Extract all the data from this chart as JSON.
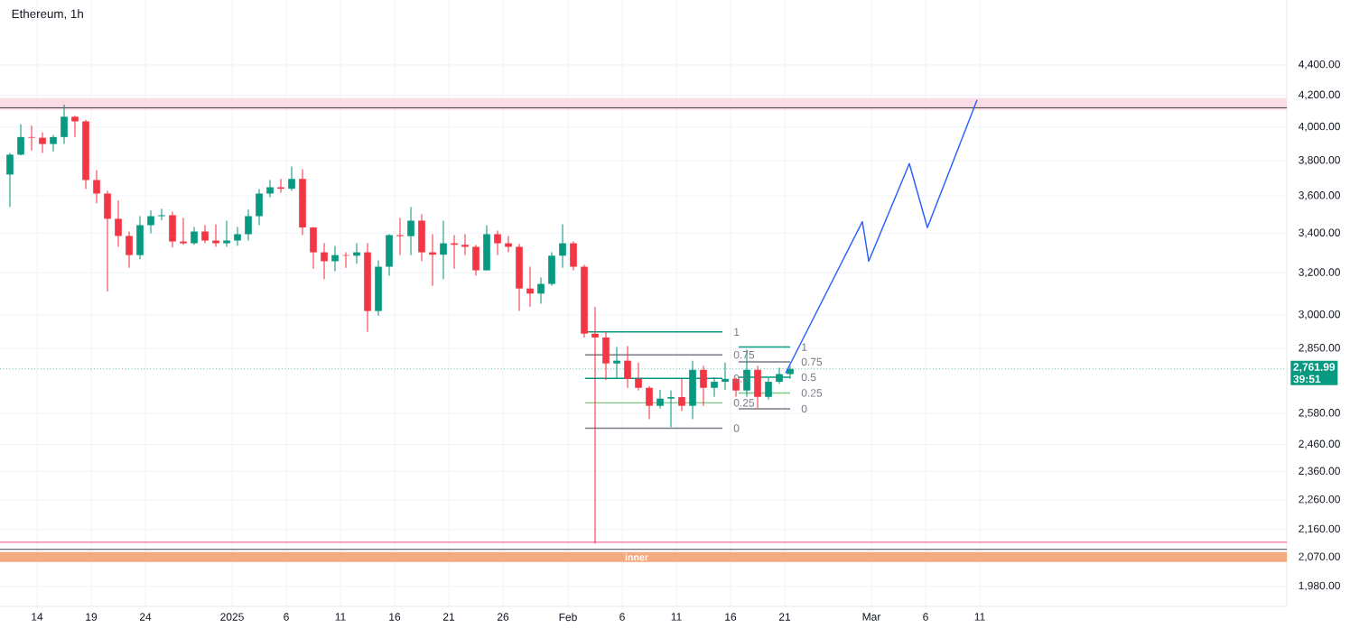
{
  "chart_data": {
    "type": "candlestick",
    "title": "Ethereum, 1h",
    "x": [
      "2024-12-11T12:00",
      "2024-12-12T12:00",
      "2024-12-13T12:00",
      "2024-12-14T12:00",
      "2024-12-15T12:00",
      "2024-12-16T12:00",
      "2024-12-17T12:00",
      "2024-12-18T12:00",
      "2024-12-19T12:00",
      "2024-12-20T12:00",
      "2024-12-21T12:00",
      "2024-12-22T12:00",
      "2024-12-23T12:00",
      "2024-12-24T12:00",
      "2024-12-25T12:00",
      "2024-12-26T12:00",
      "2024-12-27T12:00",
      "2024-12-28T12:00",
      "2024-12-29T12:00",
      "2024-12-30T12:00",
      "2024-12-31T12:00",
      "2025-01-01T12:00",
      "2025-01-02T12:00",
      "2025-01-03T12:00",
      "2025-01-04T12:00",
      "2025-01-05T12:00",
      "2025-01-06T12:00",
      "2025-01-07T12:00",
      "2025-01-08T12:00",
      "2025-01-09T12:00",
      "2025-01-10T12:00",
      "2025-01-11T12:00",
      "2025-01-12T12:00",
      "2025-01-13T12:00",
      "2025-01-14T12:00",
      "2025-01-15T12:00",
      "2025-01-16T12:00",
      "2025-01-17T12:00",
      "2025-01-18T12:00",
      "2025-01-19T12:00",
      "2025-01-20T12:00",
      "2025-01-21T12:00",
      "2025-01-22T12:00",
      "2025-01-23T12:00",
      "2025-01-24T12:00",
      "2025-01-25T12:00",
      "2025-01-26T12:00",
      "2025-01-27T12:00",
      "2025-01-28T12:00",
      "2025-01-29T12:00",
      "2025-01-30T12:00",
      "2025-01-31T12:00",
      "2025-02-01T12:00",
      "2025-02-02T12:00",
      "2025-02-03T12:00",
      "2025-02-04T12:00",
      "2025-02-05T12:00",
      "2025-02-06T12:00",
      "2025-02-07T12:00",
      "2025-02-08T12:00",
      "2025-02-09T12:00",
      "2025-02-10T12:00",
      "2025-02-11T12:00",
      "2025-02-12T12:00",
      "2025-02-13T12:00",
      "2025-02-14T12:00",
      "2025-02-15T12:00",
      "2025-02-16T12:00",
      "2025-02-17T12:00",
      "2025-02-18T12:00",
      "2025-02-19T12:00",
      "2025-02-20T12:00",
      "2025-02-21T12:00"
    ],
    "ohlc": [
      [
        3720,
        3845,
        3539,
        3835
      ],
      [
        3835,
        4017,
        3830,
        3940
      ],
      [
        3940,
        4008,
        3860,
        3936
      ],
      [
        3936,
        3968,
        3845,
        3898
      ],
      [
        3898,
        3953,
        3855,
        3940
      ],
      [
        3940,
        4140,
        3898,
        4064
      ],
      [
        4064,
        4070,
        3940,
        4035
      ],
      [
        4035,
        4045,
        3638,
        3689
      ],
      [
        3689,
        3745,
        3560,
        3613
      ],
      [
        3613,
        3628,
        3110,
        3476
      ],
      [
        3476,
        3574,
        3330,
        3386
      ],
      [
        3386,
        3409,
        3225,
        3288
      ],
      [
        3288,
        3490,
        3267,
        3442
      ],
      [
        3442,
        3520,
        3400,
        3490
      ],
      [
        3490,
        3530,
        3470,
        3495
      ],
      [
        3495,
        3514,
        3326,
        3357
      ],
      [
        3357,
        3480,
        3340,
        3348
      ],
      [
        3348,
        3433,
        3340,
        3409
      ],
      [
        3409,
        3442,
        3348,
        3362
      ],
      [
        3362,
        3447,
        3330,
        3348
      ],
      [
        3348,
        3466,
        3330,
        3362
      ],
      [
        3362,
        3433,
        3335,
        3395
      ],
      [
        3395,
        3525,
        3362,
        3490
      ],
      [
        3490,
        3638,
        3442,
        3613
      ],
      [
        3613,
        3689,
        3593,
        3648
      ],
      [
        3648,
        3695,
        3618,
        3640
      ],
      [
        3640,
        3766,
        3628,
        3695
      ],
      [
        3695,
        3750,
        3390,
        3430
      ],
      [
        3430,
        3433,
        3220,
        3302
      ],
      [
        3302,
        3348,
        3168,
        3257
      ],
      [
        3257,
        3334,
        3208,
        3288
      ],
      [
        3288,
        3302,
        3225,
        3285
      ],
      [
        3285,
        3348,
        3245,
        3302
      ],
      [
        3302,
        3348,
        2923,
        3018
      ],
      [
        3018,
        3262,
        2997,
        3230
      ],
      [
        3230,
        3395,
        3186,
        3390
      ],
      [
        3390,
        3480,
        3288,
        3385
      ],
      [
        3385,
        3539,
        3288,
        3466
      ],
      [
        3466,
        3500,
        3257,
        3302
      ],
      [
        3302,
        3395,
        3137,
        3290
      ],
      [
        3290,
        3466,
        3168,
        3348
      ],
      [
        3348,
        3390,
        3220,
        3340
      ],
      [
        3340,
        3395,
        3288,
        3330
      ],
      [
        3330,
        3340,
        3186,
        3212
      ],
      [
        3212,
        3442,
        3212,
        3395
      ],
      [
        3395,
        3414,
        3288,
        3348
      ],
      [
        3348,
        3385,
        3302,
        3330
      ],
      [
        3330,
        3345,
        3018,
        3124
      ],
      [
        3124,
        3230,
        3039,
        3100
      ],
      [
        3100,
        3177,
        3052,
        3146
      ],
      [
        3146,
        3302,
        3137,
        3285
      ],
      [
        3285,
        3447,
        3225,
        3348
      ],
      [
        3348,
        3357,
        3212,
        3230
      ],
      [
        3230,
        3240,
        2898,
        2915
      ],
      [
        2915,
        3036,
        2113,
        2898
      ],
      [
        2898,
        2923,
        2716,
        2785
      ],
      [
        2785,
        2856,
        2720,
        2797
      ],
      [
        2797,
        2860,
        2683,
        2720
      ],
      [
        2720,
        2789,
        2672,
        2683
      ],
      [
        2683,
        2690,
        2557,
        2610
      ],
      [
        2610,
        2675,
        2600,
        2639
      ],
      [
        2639,
        2672,
        2526,
        2645
      ],
      [
        2645,
        2720,
        2589,
        2610
      ],
      [
        2610,
        2797,
        2557,
        2758
      ],
      [
        2758,
        2775,
        2610,
        2683
      ],
      [
        2683,
        2727,
        2646,
        2708
      ],
      [
        2708,
        2789,
        2675,
        2720
      ],
      [
        2720,
        2725,
        2646,
        2672
      ],
      [
        2672,
        2845,
        2646,
        2758
      ],
      [
        2758,
        2775,
        2600,
        2646
      ],
      [
        2646,
        2727,
        2635,
        2708
      ],
      [
        2708,
        2767,
        2700,
        2740
      ],
      [
        2740,
        2775,
        2720,
        2761.99
      ]
    ],
    "colors": [
      "#089981",
      "#089981",
      "#f23645",
      "#f23645",
      "#089981",
      "#089981",
      "#f23645",
      "#f23645",
      "#f23645",
      "#f23645",
      "#f23645",
      "#f23645",
      "#089981",
      "#089981",
      "#089981",
      "#f23645",
      "#f23645",
      "#089981",
      "#f23645",
      "#f23645",
      "#089981",
      "#089981",
      "#089981",
      "#089981",
      "#089981",
      "#f23645",
      "#089981",
      "#f23645",
      "#f23645",
      "#f23645",
      "#089981",
      "#f23645",
      "#089981",
      "#f23645",
      "#089981",
      "#089981",
      "#f23645",
      "#089981",
      "#f23645",
      "#f23645",
      "#089981",
      "#f23645",
      "#f23645",
      "#f23645",
      "#089981",
      "#f23645",
      "#f23645",
      "#f23645",
      "#f23645",
      "#089981",
      "#089981",
      "#089981",
      "#f23645",
      "#f23645",
      "#f23645",
      "#f23645",
      "#089981",
      "#f23645",
      "#f23645",
      "#f23645",
      "#089981",
      "#089981",
      "#f23645",
      "#089981",
      "#f23645",
      "#089981",
      "#089981",
      "#f23645",
      "#089981",
      "#f23645",
      "#089981",
      "#089981",
      "#089981"
    ],
    "series": [
      {
        "type": "line",
        "color": "#089981",
        "x": [
          "2025-02-02T14:00",
          "2025-02-15T06:00"
        ],
        "values": [
          2923,
          2923
        ]
      },
      {
        "type": "line",
        "color": "#787b86",
        "x": [
          "2025-02-02T14:00",
          "2025-02-15T06:00"
        ],
        "values": [
          2822,
          2822
        ]
      },
      {
        "type": "line",
        "color": "#089981",
        "x": [
          "2025-02-02T14:00",
          "2025-02-15T06:00"
        ],
        "values": [
          2722,
          2722
        ]
      },
      {
        "type": "line",
        "color": "#81c784",
        "x": [
          "2025-02-02T14:00",
          "2025-02-15T06:00"
        ],
        "values": [
          2622,
          2622
        ]
      },
      {
        "type": "line",
        "color": "#787b86",
        "x": [
          "2025-02-02T14:00",
          "2025-02-15T06:00"
        ],
        "values": [
          2522,
          2522
        ]
      },
      {
        "type": "line",
        "color": "#089981",
        "x": [
          "2025-02-16T18:00",
          "2025-02-21T12:00"
        ],
        "values": [
          2856,
          2856
        ]
      },
      {
        "type": "line",
        "color": "#787b86",
        "x": [
          "2025-02-16T18:00",
          "2025-02-21T12:00"
        ],
        "values": [
          2792,
          2792
        ]
      },
      {
        "type": "line",
        "color": "#089981",
        "x": [
          "2025-02-16T18:00",
          "2025-02-21T12:00"
        ],
        "values": [
          2727,
          2727
        ]
      },
      {
        "type": "line",
        "color": "#81c784",
        "x": [
          "2025-02-16T18:00",
          "2025-02-21T12:00"
        ],
        "values": [
          2662,
          2662
        ]
      },
      {
        "type": "line",
        "color": "#787b86",
        "x": [
          "2025-02-16T18:00",
          "2025-02-21T12:00"
        ],
        "values": [
          2598,
          2598
        ]
      },
      {
        "type": "line",
        "color": "#2962ff",
        "x": [
          "2025-02-21T02:00",
          "2025-02-28T04:00",
          "2025-02-28T18:00",
          "2025-03-04T12:00",
          "2025-03-06T04:00",
          "2025-03-10T18:00"
        ],
        "values": [
          2744,
          3461,
          3257,
          3783,
          3429,
          4170
        ]
      }
    ],
    "ref_lines": [
      {
        "axis": "y",
        "value": 4120,
        "color": "#131722",
        "line_style": "solid"
      },
      {
        "axis": "y",
        "value": 2118,
        "color": "#e91e63",
        "line_style": "solid"
      },
      {
        "axis": "y",
        "value": 2095,
        "color": "#131722",
        "line_style": "solid"
      },
      {
        "axis": "y",
        "value": 2761.99,
        "label": "2,761.99",
        "color": "#089981",
        "line_style": "dotted"
      }
    ],
    "bands": [
      {
        "axis": "y",
        "from": 4107,
        "to": 4181,
        "color": "#fbdbe4"
      },
      {
        "axis": "y",
        "from": 2055,
        "to": 2086,
        "color": "#f5a97f",
        "label": "inner"
      }
    ],
    "annotations": [
      "39:51",
      {
        "text": "1",
        "x": "2025-02-15T06:00",
        "y": 2923
      },
      {
        "text": "0.75",
        "x": "2025-02-15T06:00",
        "y": 2822
      },
      {
        "text": "0.5",
        "x": "2025-02-15T06:00",
        "y": 2722
      },
      {
        "text": "0.25",
        "x": "2025-02-15T06:00",
        "y": 2622
      },
      {
        "text": "0",
        "x": "2025-02-15T06:00",
        "y": 2522
      },
      {
        "text": "1",
        "x": "2025-02-21T12:00",
        "y": 2856
      },
      {
        "text": "0.75",
        "x": "2025-02-21T12:00",
        "y": 2792
      },
      {
        "text": "0.5",
        "x": "2025-02-21T12:00",
        "y": 2727
      },
      {
        "text": "0.25",
        "x": "2025-02-21T12:00",
        "y": 2662
      },
      {
        "text": "0",
        "x": "2025-02-21T12:00",
        "y": 2598
      }
    ],
    "xlim": [
      "2024-12-10T14:00",
      "2025-04-08T08:00"
    ],
    "ylim": [
      1920,
      4860
    ],
    "log": "y",
    "grid": true,
    "xticks": [
      {
        "value": "2024-12-14",
        "label": "14"
      },
      {
        "value": "2024-12-19",
        "label": "19"
      },
      {
        "value": "2024-12-24",
        "label": "24"
      },
      {
        "value": "2025-01-01",
        "label": "2025"
      },
      {
        "value": "2025-01-06",
        "label": "6"
      },
      {
        "value": "2025-01-11",
        "label": "11"
      },
      {
        "value": "2025-01-16",
        "label": "16"
      },
      {
        "value": "2025-01-21",
        "label": "21"
      },
      {
        "value": "2025-01-26",
        "label": "26"
      },
      {
        "value": "2025-02-01",
        "label": "Feb"
      },
      {
        "value": "2025-02-06",
        "label": "6"
      },
      {
        "value": "2025-02-11",
        "label": "11"
      },
      {
        "value": "2025-02-16",
        "label": "16"
      },
      {
        "value": "2025-02-21",
        "label": "21"
      },
      {
        "value": "2025-03-01",
        "label": "Mar"
      },
      {
        "value": "2025-03-06",
        "label": "6"
      },
      {
        "value": "2025-03-11",
        "label": "11"
      }
    ],
    "yticks": [
      {
        "value": 1980,
        "label": "1,980.00"
      },
      {
        "value": 2070,
        "label": "2,070.00"
      },
      {
        "value": 2160,
        "label": "2,160.00"
      },
      {
        "value": 2260,
        "label": "2,260.00"
      },
      {
        "value": 2360,
        "label": "2,360.00"
      },
      {
        "value": 2460,
        "label": "2,460.00"
      },
      {
        "value": 2580,
        "label": "2,580.00"
      },
      {
        "value": 2850,
        "label": "2,850.00"
      },
      {
        "value": 3000,
        "label": "3,000.00"
      },
      {
        "value": 3200,
        "label": "3,200.00"
      },
      {
        "value": 3400,
        "label": "3,400.00"
      },
      {
        "value": 3600,
        "label": "3,600.00"
      },
      {
        "value": 3800,
        "label": "3,800.00"
      },
      {
        "value": 4000,
        "label": "4,000.00"
      },
      {
        "value": 4200,
        "label": "4,200.00"
      },
      {
        "value": 4400,
        "label": "4,400.00"
      }
    ]
  }
}
